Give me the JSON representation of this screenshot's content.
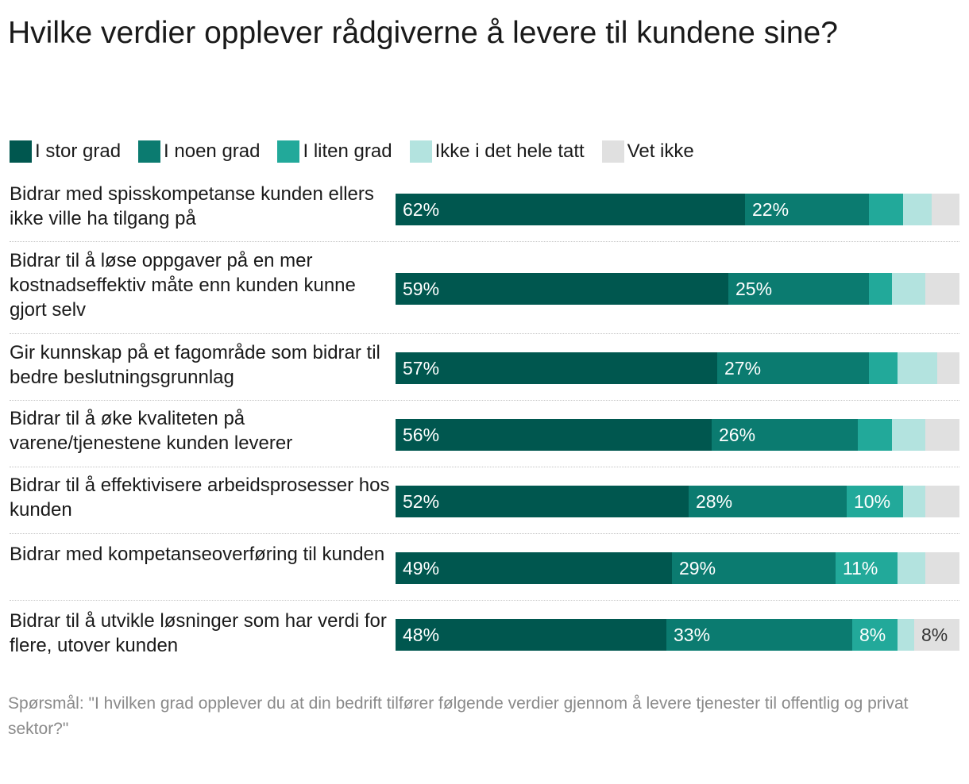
{
  "chart_data": {
    "type": "bar",
    "orientation": "horizontal",
    "stacked": true,
    "title": "Hvilke verdier opplever rådgiverne å levere til kundene sine?",
    "legend_position": "top-left",
    "categories": [
      "Bidrar med spisskompetanse kunden ellers ikke ville ha tilgang på",
      "Bidrar til å løse oppgaver på en mer kostnadseffektiv måte enn kunden kunne gjort selv",
      "Gir kunnskap på et fagområde som bidrar til bedre beslutningsgrunnlag",
      "Bidrar til å øke kvaliteten på varene/tjenestene kunden leverer",
      "Bidrar til å effektivisere arbeidsprosesser hos kunden",
      "Bidrar med kompetanseoverføring til kunden",
      "Bidrar til å utvikle løsninger som har verdi for flere, utover kunden"
    ],
    "series": [
      {
        "name": "I stor grad",
        "color": "#00574F",
        "values": [
          62,
          59,
          57,
          56,
          52,
          49,
          48
        ],
        "labels": [
          "62%",
          "59%",
          "57%",
          "56%",
          "52%",
          "49%",
          "48%"
        ]
      },
      {
        "name": "I noen grad",
        "color": "#0B7B70",
        "values": [
          22,
          25,
          27,
          26,
          28,
          29,
          33
        ],
        "labels": [
          "22%",
          "25%",
          "27%",
          "26%",
          "28%",
          "29%",
          "33%"
        ]
      },
      {
        "name": "I liten grad",
        "color": "#22A99A",
        "values": [
          6,
          4,
          5,
          6,
          10,
          11,
          8
        ],
        "labels": [
          "",
          "",
          "",
          "",
          "10%",
          "11%",
          "8%"
        ]
      },
      {
        "name": "Ikke i det hele tatt",
        "color": "#B3E3DF",
        "values": [
          5,
          6,
          7,
          6,
          4,
          5,
          3
        ],
        "labels": [
          "",
          "",
          "",
          "",
          "",
          "",
          ""
        ]
      },
      {
        "name": "Vet ikke",
        "color": "#E0E0E0",
        "values": [
          5,
          6,
          4,
          6,
          6,
          6,
          8
        ],
        "labels": [
          "",
          "",
          "",
          "",
          "",
          "",
          "8%"
        ]
      }
    ],
    "label_colors": [
      "#ffffff",
      "#ffffff",
      "#ffffff",
      "#1a1a1a",
      "#333333"
    ],
    "xlim": [
      0,
      100
    ],
    "grid": false,
    "footnote": "Spørsmål: \"I hvilken grad opplever du at din bedrift tilfører følgende verdier gjennom å levere tjenester til offentlig og privat sektor?\""
  }
}
